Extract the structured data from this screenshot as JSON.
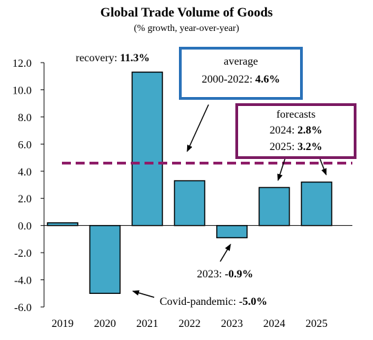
{
  "chart_data": {
    "type": "bar",
    "title": "Global Trade Volume of Goods",
    "subtitle": "(% growth, year-over-year)",
    "categories": [
      "2019",
      "2020",
      "2021",
      "2022",
      "2023",
      "2024",
      "2025"
    ],
    "values": [
      0.2,
      -5.0,
      11.3,
      3.3,
      -0.9,
      2.8,
      3.2
    ],
    "ylim": [
      -6,
      12
    ],
    "yticks": [
      "12.0",
      "10.0",
      "8.0",
      "6.0",
      "4.0",
      "2.0",
      "0.0",
      "-2.0",
      "-4.0",
      "-6.0"
    ],
    "grid": false,
    "bar_color": "#42a8c8",
    "reference_line": {
      "value": 4.6,
      "color": "#8e1c68",
      "style": "dashed"
    },
    "annotations": {
      "recovery": {
        "text": "recovery: ",
        "value": "11.3%"
      },
      "average": {
        "line1": "average",
        "line2": "2000-2022: ",
        "value": "4.6%",
        "box_color": "#2a72b9"
      },
      "forecasts": {
        "line1": "forecasts",
        "f2024": "2024: ",
        "v2024": "2.8%",
        "f2025": "2025: ",
        "v2025": "3.2%",
        "box_color": "#7b1a62"
      },
      "y2023": {
        "text": "2023: ",
        "value": "-0.9%"
      },
      "covid": {
        "text": "Covid-pandemic: ",
        "value": "-5.0%"
      }
    }
  }
}
